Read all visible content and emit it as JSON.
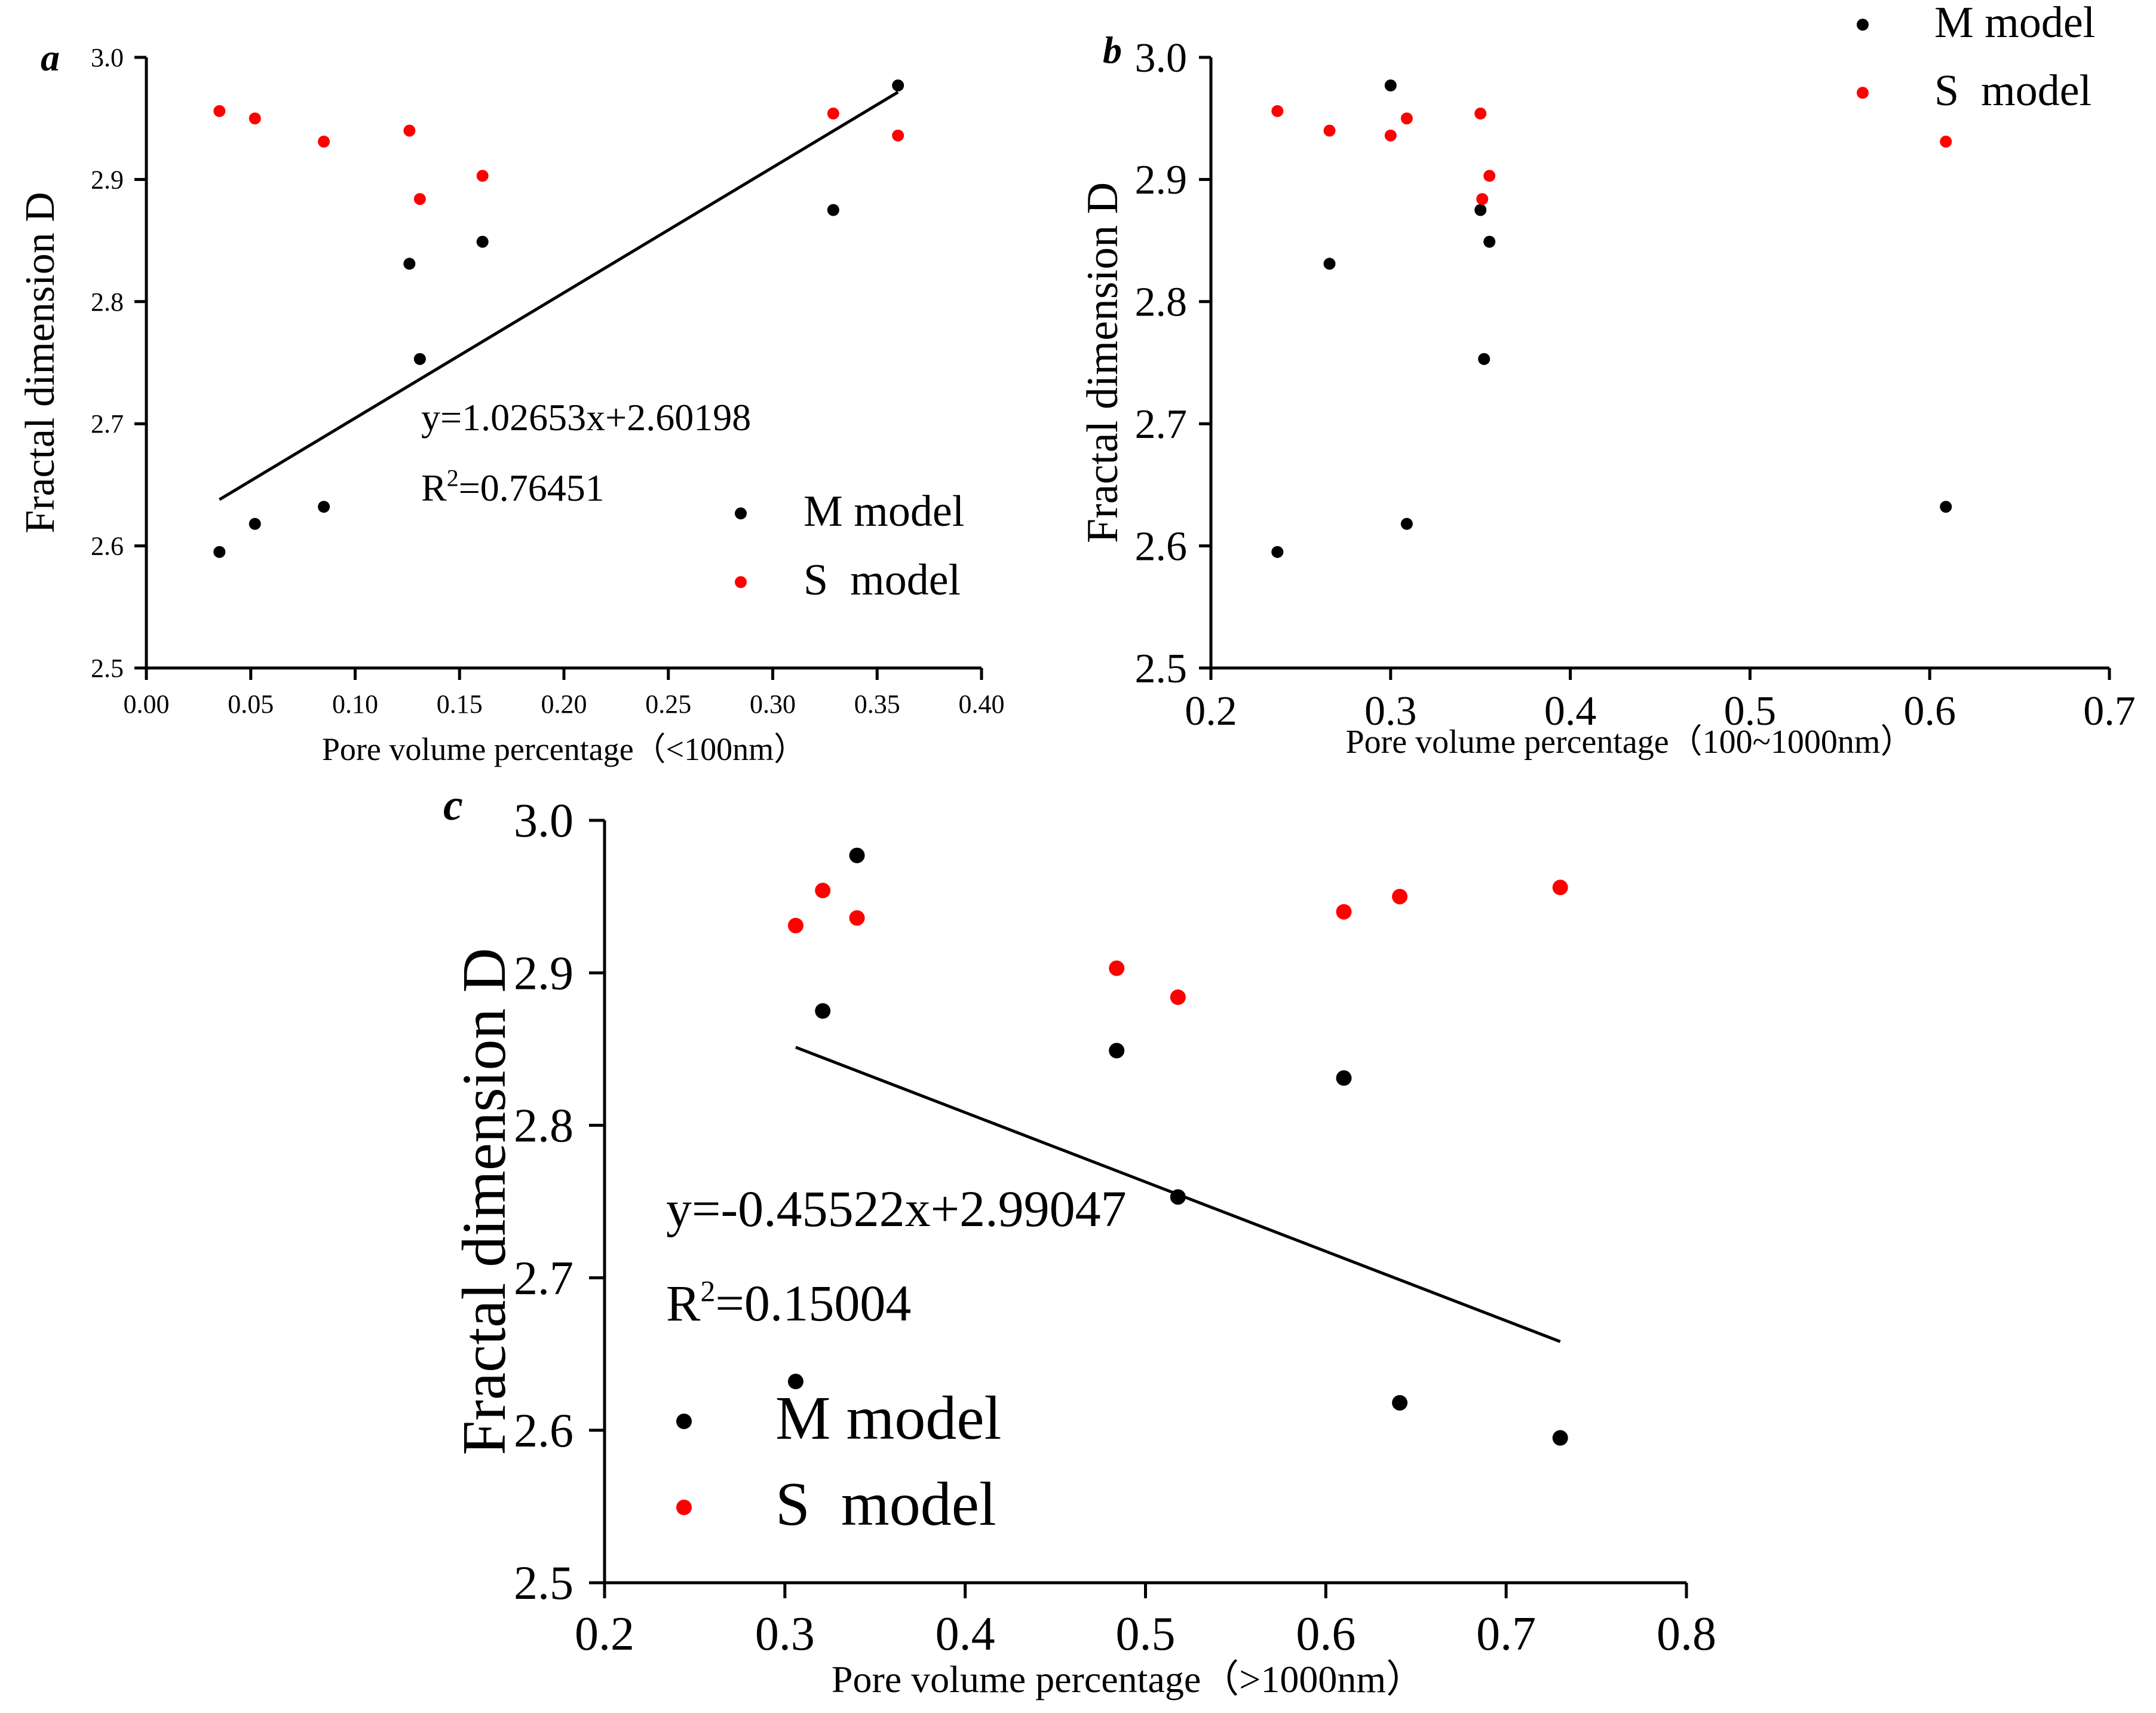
{
  "chart_data": [
    {
      "id": "a",
      "type": "scatter",
      "panel_label": "a",
      "xlabel": "Pore volume percentage（<100nm）",
      "ylabel": "Fractal dimension D",
      "xlim": [
        0.0,
        0.4
      ],
      "ylim": [
        2.5,
        3.0
      ],
      "xticks": [
        "0.00",
        "0.05",
        "0.10",
        "0.15",
        "0.20",
        "0.25",
        "0.30",
        "0.35",
        "0.40"
      ],
      "yticks": [
        "2.5",
        "2.6",
        "2.7",
        "2.8",
        "2.9",
        "3.0"
      ],
      "series": [
        {
          "name": "M model",
          "color": "#000000",
          "x": [
            0.035,
            0.052,
            0.085,
            0.126,
            0.131,
            0.161,
            0.329,
            0.36
          ],
          "y": [
            2.595,
            2.618,
            2.632,
            2.831,
            2.753,
            2.849,
            2.875,
            2.977
          ]
        },
        {
          "name": "S  model",
          "color": "#ff0000",
          "x": [
            0.035,
            0.052,
            0.085,
            0.126,
            0.131,
            0.161,
            0.329,
            0.36
          ],
          "y": [
            2.956,
            2.95,
            2.931,
            2.94,
            2.884,
            2.903,
            2.954,
            2.936
          ]
        }
      ],
      "fit": {
        "x": [
          0.035,
          0.36
        ],
        "slope": 1.02653,
        "intercept": 2.60198
      },
      "equation": "y=1.02653x+2.60198",
      "r2_prefix": "R",
      "r2_sup": "2",
      "r2_value": "=0.76451",
      "legend_position": "lower-right"
    },
    {
      "id": "b",
      "type": "scatter",
      "panel_label": "b",
      "xlabel": "Pore volume percentage（100~1000nm）",
      "ylabel": "Fractal dimension D",
      "xlim": [
        0.2,
        0.7
      ],
      "ylim": [
        2.5,
        3.0
      ],
      "xticks": [
        "0.2",
        "0.3",
        "0.4",
        "0.5",
        "0.6",
        "0.7"
      ],
      "yticks": [
        "2.5",
        "2.6",
        "2.7",
        "2.8",
        "2.9",
        "3.0"
      ],
      "series": [
        {
          "name": "M model",
          "color": "#000000",
          "x": [
            0.237,
            0.266,
            0.3,
            0.309,
            0.35,
            0.352,
            0.355,
            0.609
          ],
          "y": [
            2.595,
            2.831,
            2.977,
            2.618,
            2.875,
            2.753,
            2.849,
            2.632
          ]
        },
        {
          "name": "S  model",
          "color": "#ff0000",
          "x": [
            0.237,
            0.266,
            0.3,
            0.309,
            0.35,
            0.351,
            0.355,
            0.609
          ],
          "y": [
            2.956,
            2.94,
            2.936,
            2.95,
            2.954,
            2.884,
            2.903,
            2.931
          ]
        }
      ],
      "legend_position": "top-right"
    },
    {
      "id": "c",
      "type": "scatter",
      "panel_label": "c",
      "xlabel": "Pore volume percentage（>1000nm）",
      "ylabel": "Fractal dimension D",
      "xlim": [
        0.2,
        0.8
      ],
      "ylim": [
        2.5,
        3.0
      ],
      "xticks": [
        "0.2",
        "0.3",
        "0.4",
        "0.5",
        "0.6",
        "0.7",
        "0.8"
      ],
      "yticks": [
        "2.5",
        "2.6",
        "2.7",
        "2.8",
        "2.9",
        "3.0"
      ],
      "series": [
        {
          "name": "M model",
          "color": "#000000",
          "x": [
            0.306,
            0.321,
            0.34,
            0.484,
            0.518,
            0.61,
            0.641,
            0.73
          ],
          "y": [
            2.632,
            2.875,
            2.977,
            2.849,
            2.753,
            2.831,
            2.618,
            2.595
          ]
        },
        {
          "name": "S  model",
          "color": "#ff0000",
          "x": [
            0.306,
            0.321,
            0.34,
            0.484,
            0.518,
            0.61,
            0.641,
            0.73
          ],
          "y": [
            2.931,
            2.954,
            2.936,
            2.903,
            2.884,
            2.94,
            2.95,
            2.956
          ]
        }
      ],
      "fit": {
        "x": [
          0.306,
          0.73
        ],
        "slope": -0.45522,
        "intercept": 2.99047
      },
      "equation": "y=-0.45522x+2.99047",
      "r2_prefix": "R",
      "r2_sup": "2",
      "r2_value": "=0.15004",
      "legend_position": "lower-left"
    }
  ]
}
